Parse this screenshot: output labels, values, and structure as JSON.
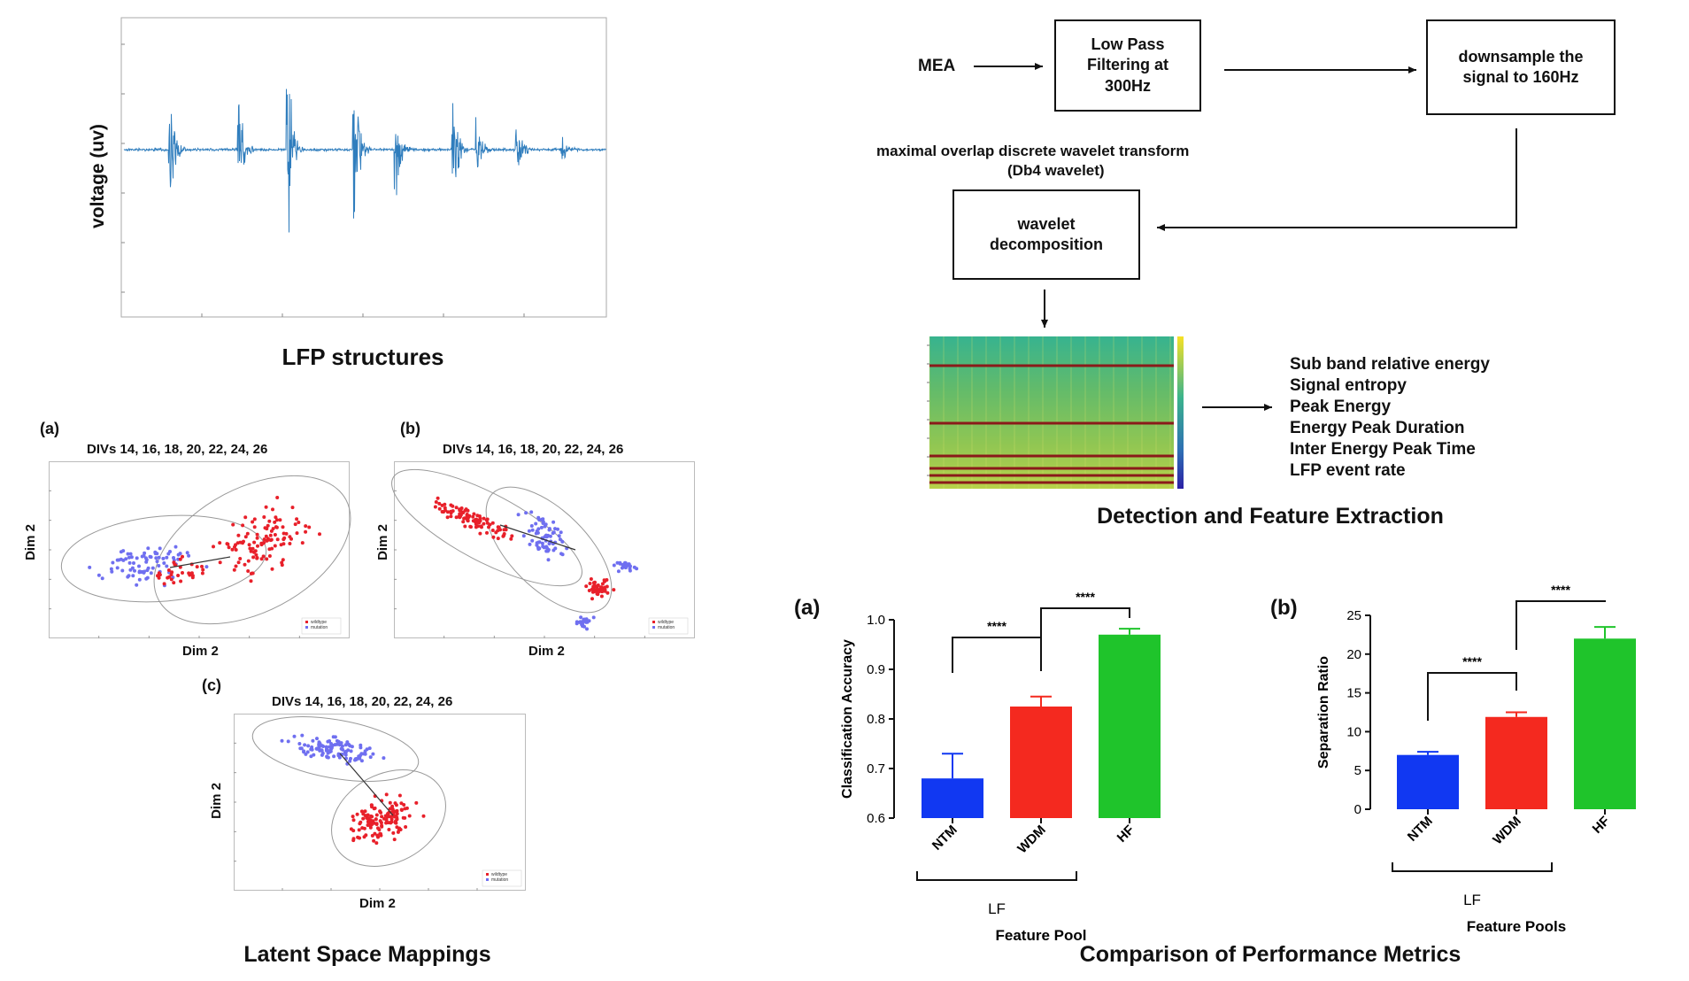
{
  "lfp": {
    "ylabel": "voltage (uv)",
    "caption": "LFP structures",
    "line_color": "#2f7dbd"
  },
  "latent": {
    "caption": "Latent Space Mappings",
    "panels": [
      {
        "letter": "(a)",
        "title": "DIVs 14, 16, 18, 20, 22, 24, 26",
        "xlabel": "Dim 2",
        "ylabel": "Dim 2",
        "legend": [
          "wildtype",
          "mutation"
        ]
      },
      {
        "letter": "(b)",
        "title": "DIVs 14, 16, 18, 20, 22, 24, 26",
        "xlabel": "Dim 2",
        "ylabel": "Dim 2",
        "legend": [
          "wildtype",
          "mutation"
        ]
      },
      {
        "letter": "(c)",
        "title": "DIVs 14, 16, 18, 20, 22, 24, 26",
        "xlabel": "Dim 2",
        "ylabel": "Dim 2",
        "legend": [
          "wildtype",
          "mutation"
        ]
      }
    ],
    "colors": {
      "wildtype": "#e8202a",
      "mutation": "#6f6ff0"
    }
  },
  "flow": {
    "mea": "MEA",
    "lowpass": "Low Pass\nFiltering at\n300Hz",
    "downsample": "downsample the\nsignal to 160Hz",
    "modwt": "maximal overlap discrete wavelet transform",
    "db4": "(Db4 wavelet)",
    "wavelet": "wavelet\ndecomposition",
    "features": [
      "Sub band relative energy",
      "Signal entropy",
      "Peak Energy",
      "Energy Peak Duration",
      "Inter Energy Peak Time",
      "LFP event rate"
    ],
    "caption": "Detection and Feature Extraction"
  },
  "perf": {
    "caption": "Comparison of Performance Metrics",
    "significance": "****",
    "group_label": "LF"
  },
  "chart_data": [
    {
      "type": "bar",
      "letter": "(a)",
      "categories": [
        "NTM",
        "WDM",
        "HF"
      ],
      "values": [
        0.68,
        0.825,
        0.97
      ],
      "errors": [
        0.05,
        0.02,
        0.012
      ],
      "colors": [
        "#1138f2",
        "#f4291f",
        "#1fc42b"
      ],
      "ylabel": "Classification Accuracy",
      "xlabel": "Feature Pool",
      "ylim": [
        0.6,
        1.0
      ],
      "yticks": [
        "0.6",
        "0.7",
        "0.8",
        "0.9",
        "1.0"
      ]
    },
    {
      "type": "bar",
      "letter": "(b)",
      "categories": [
        "NTM",
        "WDM",
        "HF"
      ],
      "values": [
        7.0,
        11.9,
        22.0
      ],
      "errors": [
        0.4,
        0.6,
        1.5
      ],
      "colors": [
        "#1138f2",
        "#f4291f",
        "#1fc42b"
      ],
      "ylabel": "Separation Ratio",
      "xlabel": "Feature Pools",
      "ylim": [
        0,
        25
      ],
      "yticks": [
        "0",
        "5",
        "10",
        "15",
        "20",
        "25"
      ]
    }
  ]
}
